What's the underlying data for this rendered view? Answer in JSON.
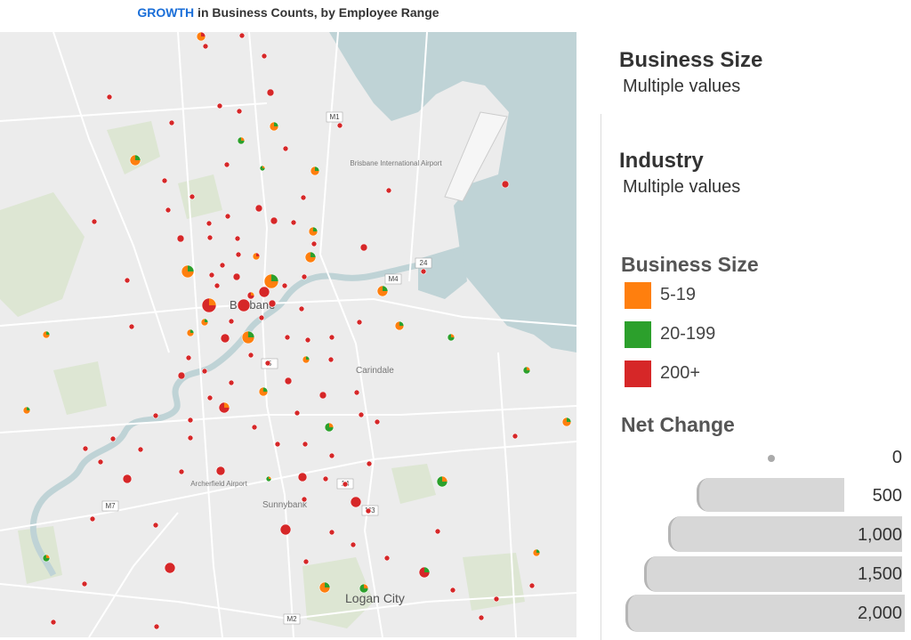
{
  "title": {
    "highlight": "GROWTH",
    "rest": " in Business Counts, by Employee Range"
  },
  "filters": [
    {
      "heading": "Business Size",
      "value": "Multiple values"
    },
    {
      "heading": "Industry",
      "value": "Multiple values"
    }
  ],
  "color_legend": {
    "title": "Business Size",
    "items": [
      {
        "label": "5-19",
        "color": "#ff7f0e"
      },
      {
        "label": "20-199",
        "color": "#2ca02c"
      },
      {
        "label": "200+",
        "color": "#d62728"
      }
    ]
  },
  "size_legend": {
    "title": "Net Change",
    "items": [
      {
        "label": "0",
        "value": 0
      },
      {
        "label": "500",
        "value": 500
      },
      {
        "label": "1,000",
        "value": 1000
      },
      {
        "label": "1,500",
        "value": 1500
      },
      {
        "label": "2,000",
        "value": 2000
      }
    ]
  },
  "map": {
    "place_labels": [
      "Brisbane",
      "Brisbane International Airport",
      "Carindale",
      "Archerfield Airport",
      "Sunnybank",
      "Logan City"
    ],
    "road_labels": [
      "M1",
      "M4",
      "24",
      "5",
      "14",
      "M3",
      "M7",
      "M2"
    ],
    "colors": {
      "land": "#ececec",
      "water": "#bfd3d6",
      "park": "#dde6d3",
      "road": "#ffffff"
    }
  }
}
